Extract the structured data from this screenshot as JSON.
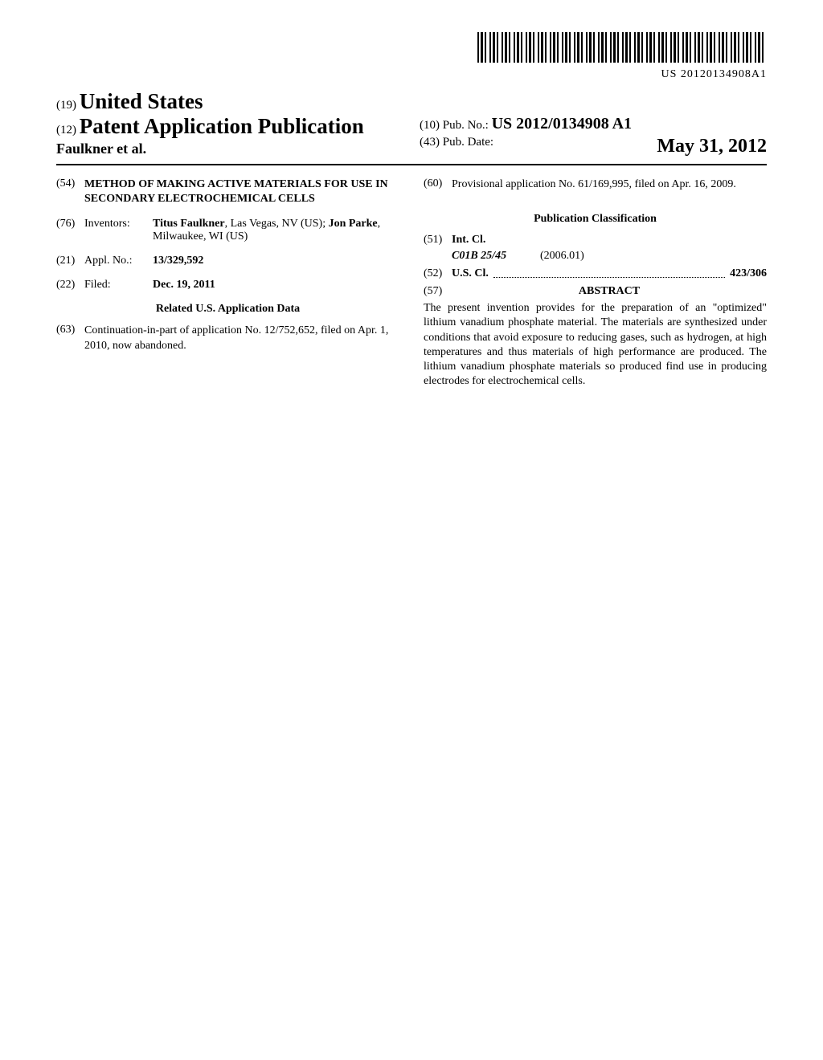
{
  "barcode": {
    "text": "US 20120134908A1"
  },
  "header": {
    "authority_code": "(19)",
    "authority_name": "United States",
    "pub_type_code": "(12)",
    "pub_type": "Patent Application Publication",
    "authors": "Faulkner et al.",
    "pub_no_code": "(10)",
    "pub_no_label": "Pub. No.:",
    "pub_no_value": "US 2012/0134908 A1",
    "pub_date_code": "(43)",
    "pub_date_label": "Pub. Date:",
    "pub_date_value": "May 31, 2012"
  },
  "left_column": {
    "title": {
      "num": "(54)",
      "text": "METHOD OF MAKING ACTIVE MATERIALS FOR USE IN SECONDARY ELECTROCHEMICAL CELLS"
    },
    "inventors": {
      "num": "(76)",
      "label": "Inventors:",
      "value_html": "Titus Faulkner, Las Vegas, NV (US); Jon Parke, Milwaukee, WI (US)",
      "name1": "Titus Faulkner",
      "loc1": ", Las Vegas, NV (US); ",
      "name2": "Jon Parke",
      "loc2": ", Milwaukee, WI (US)"
    },
    "appl_no": {
      "num": "(21)",
      "label": "Appl. No.:",
      "value": "13/329,592"
    },
    "filed": {
      "num": "(22)",
      "label": "Filed:",
      "value": "Dec. 19, 2011"
    },
    "related_heading": "Related U.S. Application Data",
    "continuation": {
      "num": "(63)",
      "text": "Continuation-in-part of application No. 12/752,652, filed on Apr. 1, 2010, now abandoned."
    }
  },
  "right_column": {
    "provisional": {
      "num": "(60)",
      "text": "Provisional application No. 61/169,995, filed on Apr. 16, 2009."
    },
    "classification_heading": "Publication Classification",
    "int_cl": {
      "num": "(51)",
      "label": "Int. Cl.",
      "code": "C01B 25/45",
      "date": "(2006.01)"
    },
    "us_cl": {
      "num": "(52)",
      "label": "U.S. Cl.",
      "value": "423/306"
    },
    "abstract": {
      "num": "(57)",
      "heading": "ABSTRACT",
      "text": "The present invention provides for the preparation of an \"optimized\" lithium vanadium phosphate material. The materials are synthesized under conditions that avoid exposure to reducing gases, such as hydrogen, at high temperatures and thus materials of high performance are produced. The lithium vanadium phosphate materials so produced find use in producing electrodes for electrochemical cells."
    }
  }
}
